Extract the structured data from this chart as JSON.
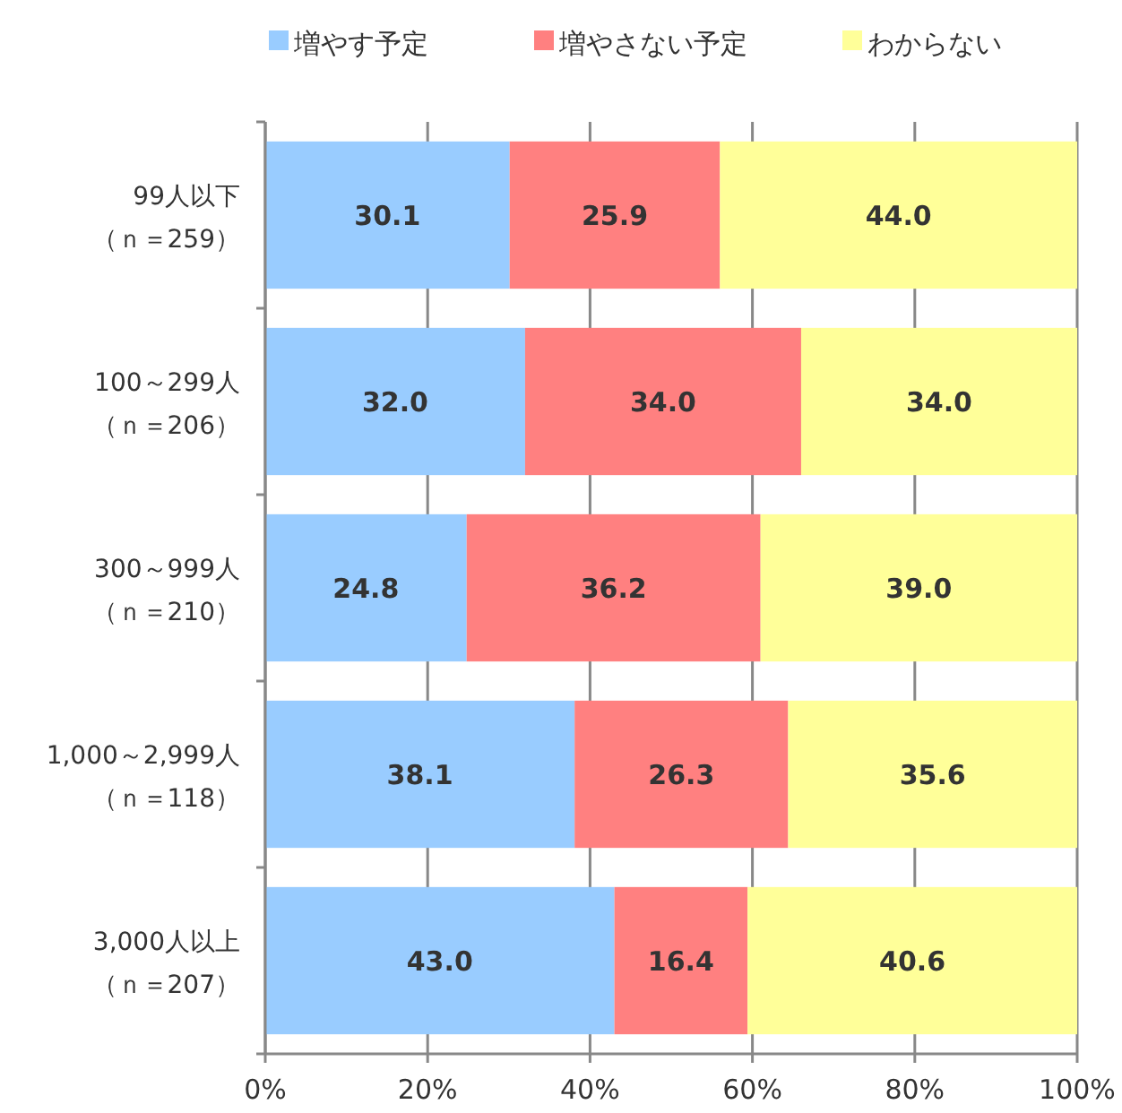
{
  "chart_data": {
    "type": "bar",
    "orientation": "horizontal",
    "stacked": true,
    "categories": [
      "99人以下（ｎ＝259）",
      "100～299人（ｎ＝206）",
      "300～999人（ｎ＝210）",
      "1,000～2,999人（ｎ＝118）",
      "3,000人以上（ｎ＝207）"
    ],
    "series": [
      {
        "name": "増やす予定",
        "color": "#99ccff",
        "values": [
          30.1,
          32.0,
          24.8,
          38.1,
          43.0
        ],
        "value_labels": [
          "30.1",
          "32.0",
          "24.8",
          "38.1",
          "43.0"
        ]
      },
      {
        "name": "増やさない予定",
        "color": "#ff8080",
        "values": [
          25.9,
          34.0,
          36.2,
          26.3,
          16.4
        ],
        "value_labels": [
          "25.9",
          "34.0",
          "36.2",
          "26.3",
          "16.4"
        ]
      },
      {
        "name": "わからない",
        "color": "#ffff99",
        "values": [
          44.0,
          34.0,
          39.0,
          35.6,
          40.6
        ],
        "value_labels": [
          "44.0",
          "34.0",
          "39.0",
          "35.6",
          "40.6"
        ]
      }
    ],
    "xlim": [
      0,
      100
    ],
    "xticks": [
      {
        "value": 0,
        "label": "0%"
      },
      {
        "value": 20,
        "label": "20%"
      },
      {
        "value": 40,
        "label": "40%"
      },
      {
        "value": 60,
        "label": "60%"
      },
      {
        "value": 80,
        "label": "80%"
      },
      {
        "value": 100,
        "label": "100%"
      }
    ],
    "grid": "x",
    "legend": "top"
  }
}
